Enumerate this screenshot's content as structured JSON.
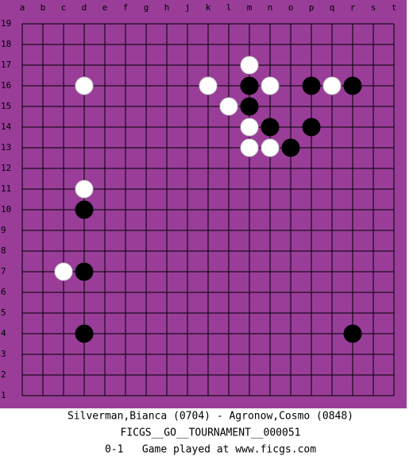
{
  "board": {
    "columns": [
      "a",
      "b",
      "c",
      "d",
      "e",
      "f",
      "g",
      "h",
      "j",
      "k",
      "l",
      "m",
      "n",
      "o",
      "p",
      "q",
      "r",
      "s",
      "t"
    ],
    "rows": [
      19,
      18,
      17,
      16,
      15,
      14,
      13,
      12,
      11,
      10,
      9,
      8,
      7,
      6,
      5,
      4,
      3,
      2,
      1
    ],
    "stones": [
      {
        "color": "white",
        "col": "d",
        "row": 16
      },
      {
        "color": "white",
        "col": "k",
        "row": 16
      },
      {
        "color": "white",
        "col": "m",
        "row": 17
      },
      {
        "color": "white",
        "col": "n",
        "row": 16
      },
      {
        "color": "white",
        "col": "q",
        "row": 16
      },
      {
        "color": "white",
        "col": "l",
        "row": 15
      },
      {
        "color": "white",
        "col": "m",
        "row": 14
      },
      {
        "color": "white",
        "col": "m",
        "row": 13
      },
      {
        "color": "white",
        "col": "n",
        "row": 13
      },
      {
        "color": "white",
        "col": "d",
        "row": 11
      },
      {
        "color": "white",
        "col": "c",
        "row": 7
      },
      {
        "color": "black",
        "col": "m",
        "row": 16
      },
      {
        "color": "black",
        "col": "p",
        "row": 16
      },
      {
        "color": "black",
        "col": "r",
        "row": 16
      },
      {
        "color": "black",
        "col": "m",
        "row": 15
      },
      {
        "color": "black",
        "col": "n",
        "row": 14
      },
      {
        "color": "black",
        "col": "p",
        "row": 14
      },
      {
        "color": "black",
        "col": "o",
        "row": 13
      },
      {
        "color": "black",
        "col": "d",
        "row": 10
      },
      {
        "color": "black",
        "col": "d",
        "row": 7
      },
      {
        "color": "black",
        "col": "d",
        "row": 4
      },
      {
        "color": "black",
        "col": "r",
        "row": 4
      }
    ]
  },
  "footer": {
    "players": "Silverman,Bianca (0704) - Agronow,Cosmo (0848)",
    "event": "FICGS__GO__TOURNAMENT__000051",
    "result": "0-1   Game played at www.ficgs.com"
  }
}
